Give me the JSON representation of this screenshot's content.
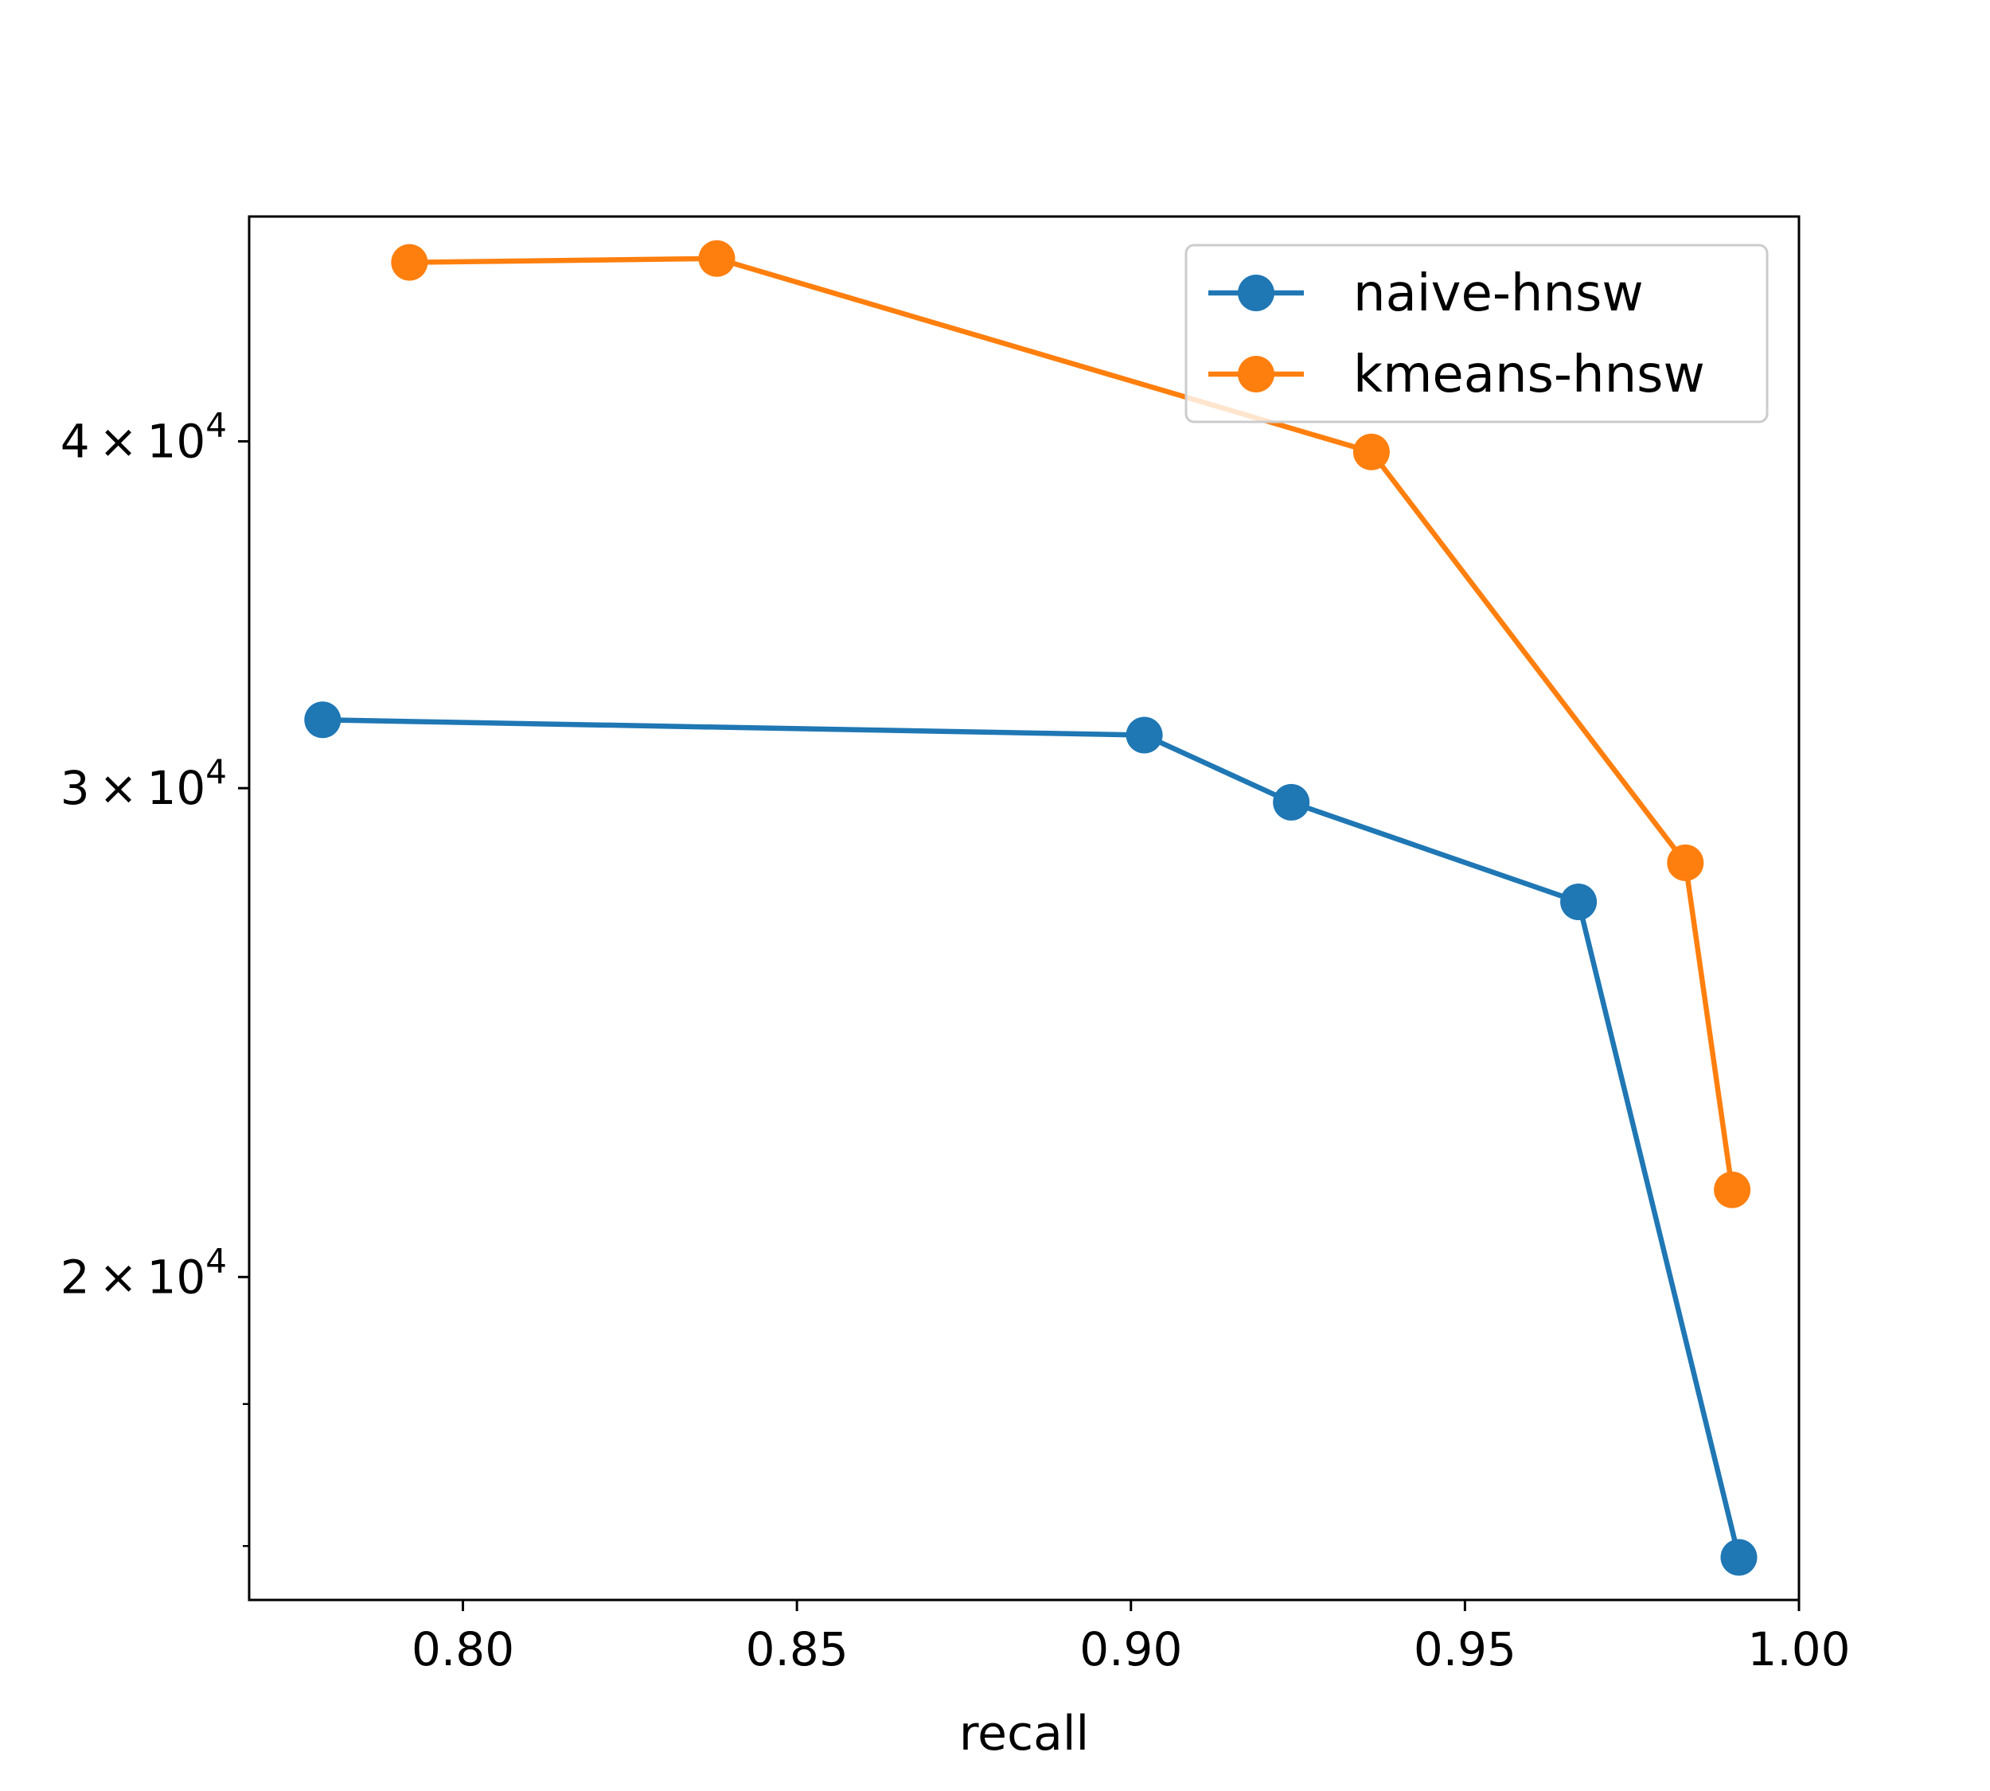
{
  "chart_data": {
    "type": "line",
    "xlabel": "recall",
    "ylabel": "",
    "yscale": "log",
    "xlim": [
      0.768,
      1.0
    ],
    "ylim": [
      15300,
      48200
    ],
    "xticks": [
      {
        "value": 0.8,
        "label": "0.80"
      },
      {
        "value": 0.85,
        "label": "0.85"
      },
      {
        "value": 0.9,
        "label": "0.90"
      },
      {
        "value": 0.95,
        "label": "0.95"
      },
      {
        "value": 1.0,
        "label": "1.00"
      }
    ],
    "yticks": [
      {
        "value": 20000,
        "mantissa": "2",
        "times": "×",
        "base": "10",
        "exp": "4"
      },
      {
        "value": 30000,
        "mantissa": "3",
        "times": "×",
        "base": "10",
        "exp": "4"
      },
      {
        "value": 40000,
        "mantissa": "4",
        "times": "×",
        "base": "10",
        "exp": "4"
      }
    ],
    "legend": {
      "placement": "top-right"
    },
    "series": [
      {
        "name": "naive-hnsw",
        "color": "#1f77b4",
        "points": [
          [
            0.779,
            31750
          ],
          [
            0.902,
            31350
          ],
          [
            0.924,
            29650
          ],
          [
            0.967,
            27300
          ],
          [
            0.991,
            15850
          ]
        ]
      },
      {
        "name": "kmeans-hnsw",
        "color": "#ff7f0e",
        "points": [
          [
            0.792,
            46400
          ],
          [
            0.838,
            46550
          ],
          [
            0.936,
            39650
          ],
          [
            0.983,
            28200
          ],
          [
            0.99,
            21500
          ]
        ]
      }
    ]
  }
}
